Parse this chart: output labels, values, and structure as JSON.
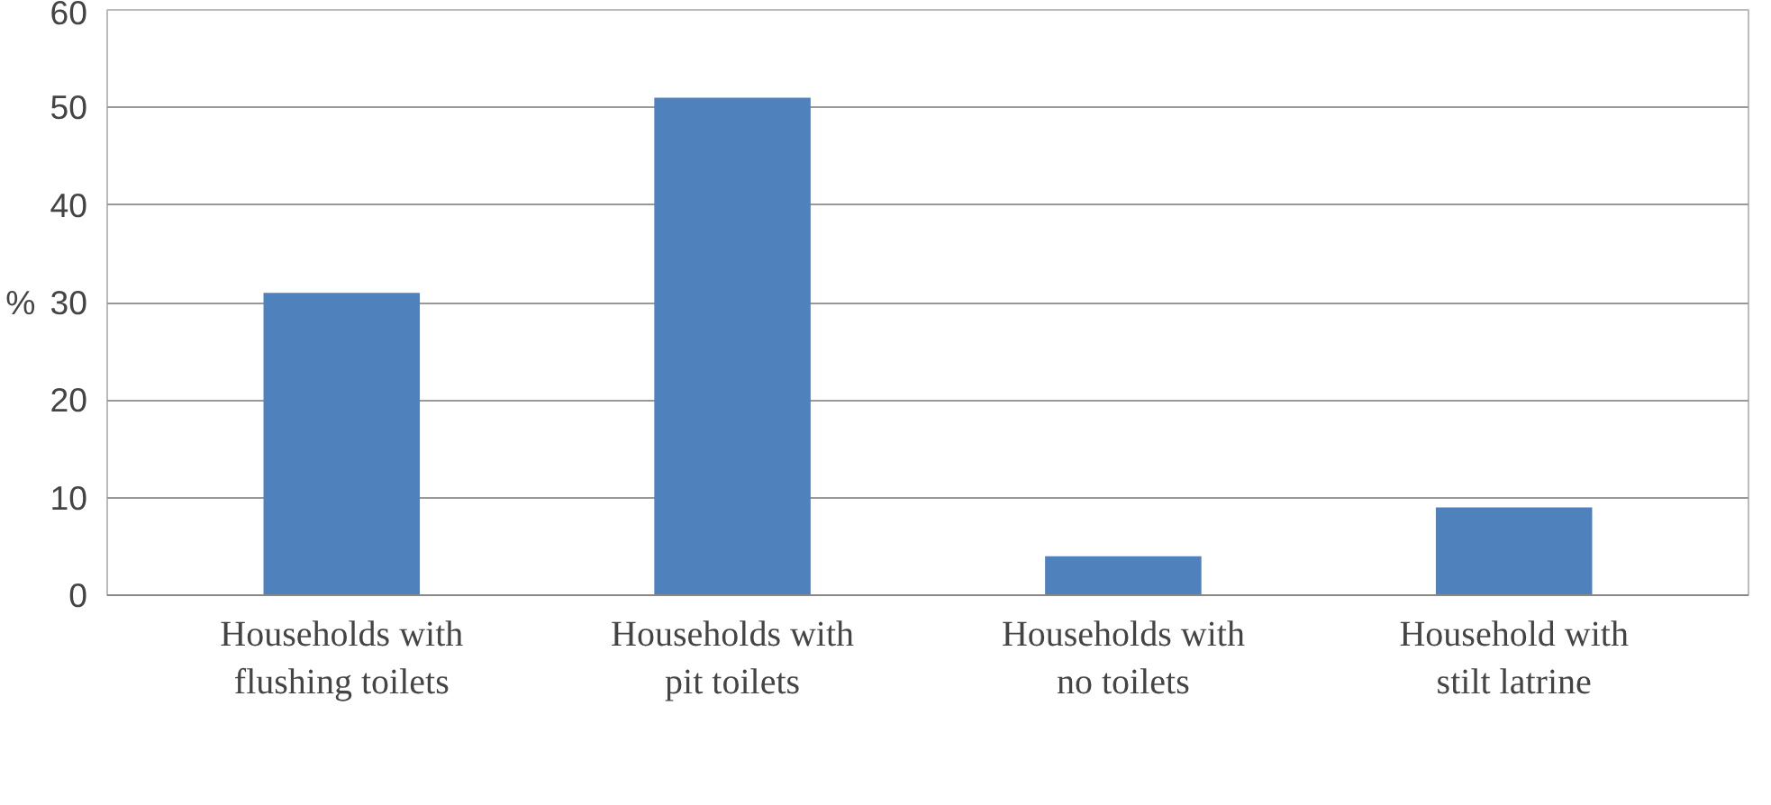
{
  "chart_data": {
    "type": "bar",
    "ylabel": "%",
    "categories": [
      "Households with flushing toilets",
      "Households with pit toilets",
      "Households with no toilets",
      "Household with stilt latrine"
    ],
    "values": [
      31,
      51,
      4,
      9
    ],
    "color": "#4f81bd",
    "ylim": [
      0,
      60
    ],
    "yticks": [
      0,
      10,
      20,
      30,
      40,
      50,
      60
    ],
    "grid": "y"
  }
}
